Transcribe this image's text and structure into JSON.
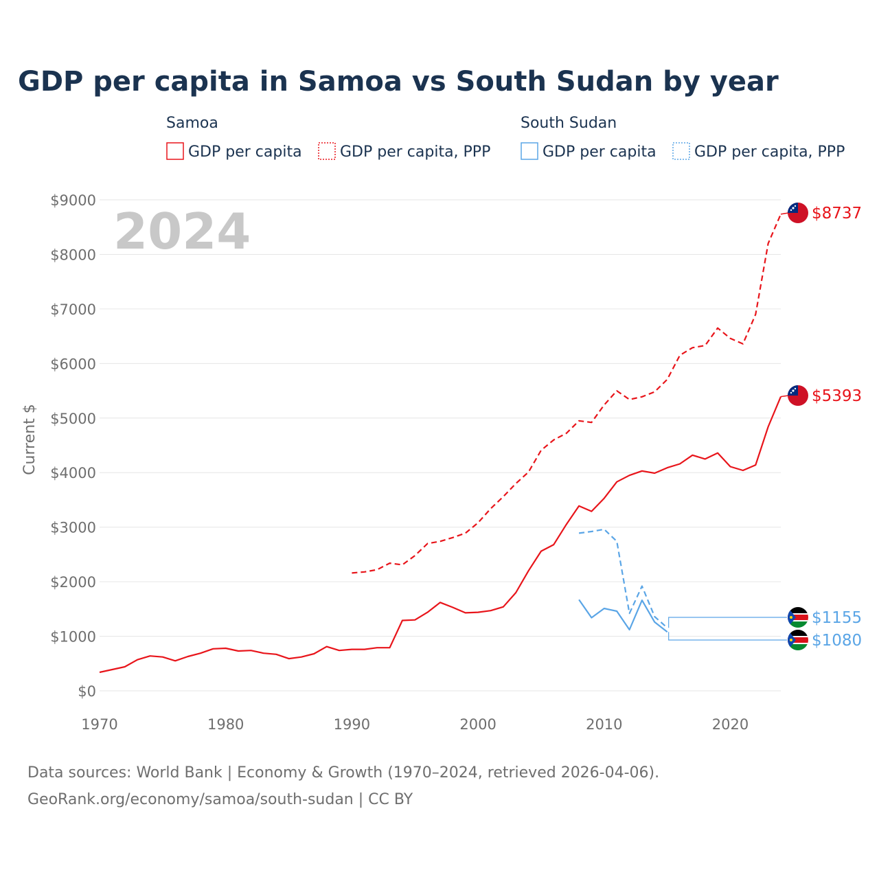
{
  "colors": {
    "samoa": "#e8141a",
    "south_sudan": "#5aa5e6",
    "title": "#1b3350",
    "muted": "#6e6e6e"
  },
  "chart_data": {
    "type": "line",
    "title": "GDP per capita in Samoa vs South Sudan by year",
    "year_label": "2024",
    "ylabel": "Current $",
    "xlim": [
      1970,
      2024
    ],
    "ylim": [
      0,
      9000
    ],
    "x_ticks": [
      1970,
      1980,
      1990,
      2000,
      2010,
      2020
    ],
    "y_ticks": [
      0,
      1000,
      2000,
      3000,
      4000,
      5000,
      6000,
      7000,
      8000,
      9000
    ],
    "y_tick_labels": [
      "$0",
      "$1000",
      "$2000",
      "$3000",
      "$4000",
      "$5000",
      "$6000",
      "$7000",
      "$8000",
      "$9000"
    ],
    "legend": {
      "groups": [
        {
          "name": "Samoa",
          "items": [
            "GDP per capita",
            "GDP per capita, PPP"
          ]
        },
        {
          "name": "South Sudan",
          "items": [
            "GDP per capita",
            "GDP per capita, PPP"
          ]
        }
      ]
    },
    "series": [
      {
        "name": "Samoa GDP per capita",
        "country": "samoa",
        "style": "solid",
        "end_label": "$5393",
        "x": [
          1970,
          1971,
          1972,
          1973,
          1974,
          1975,
          1976,
          1977,
          1978,
          1979,
          1980,
          1981,
          1982,
          1983,
          1984,
          1985,
          1986,
          1987,
          1988,
          1989,
          1990,
          1991,
          1992,
          1993,
          1994,
          1995,
          1996,
          1997,
          1998,
          1999,
          2000,
          2001,
          2002,
          2003,
          2004,
          2005,
          2006,
          2007,
          2008,
          2009,
          2010,
          2011,
          2012,
          2013,
          2014,
          2015,
          2016,
          2017,
          2018,
          2019,
          2020,
          2021,
          2022,
          2023,
          2024
        ],
        "values": [
          340,
          390,
          440,
          570,
          640,
          620,
          550,
          630,
          690,
          770,
          780,
          730,
          740,
          690,
          670,
          590,
          620,
          680,
          810,
          740,
          760,
          760,
          790,
          790,
          1290,
          1300,
          1440,
          1620,
          1530,
          1430,
          1440,
          1470,
          1540,
          1800,
          2200,
          2560,
          2680,
          3050,
          3390,
          3290,
          3530,
          3830,
          3950,
          4030,
          3990,
          4090,
          4160,
          4320,
          4250,
          4360,
          4110,
          4040,
          4140,
          4840,
          5393
        ]
      },
      {
        "name": "Samoa GDP per capita, PPP",
        "country": "samoa",
        "style": "dashed",
        "end_label": "$8737",
        "x": [
          1990,
          1991,
          1992,
          1993,
          1994,
          1995,
          1996,
          1997,
          1998,
          1999,
          2000,
          2001,
          2002,
          2003,
          2004,
          2005,
          2006,
          2007,
          2008,
          2009,
          2010,
          2011,
          2012,
          2013,
          2014,
          2015,
          2016,
          2017,
          2018,
          2019,
          2020,
          2021,
          2022,
          2023,
          2024
        ],
        "values": [
          2160,
          2180,
          2220,
          2340,
          2310,
          2480,
          2700,
          2740,
          2810,
          2890,
          3080,
          3340,
          3560,
          3800,
          4010,
          4410,
          4600,
          4720,
          4950,
          4920,
          5240,
          5500,
          5340,
          5390,
          5480,
          5710,
          6150,
          6290,
          6330,
          6650,
          6460,
          6360,
          6900,
          8200,
          8737
        ]
      },
      {
        "name": "South Sudan GDP per capita",
        "country": "south_sudan",
        "style": "solid",
        "end_label": "$1080",
        "x": [
          2008,
          2009,
          2010,
          2011,
          2012,
          2013,
          2014,
          2015
        ],
        "values": [
          1670,
          1340,
          1510,
          1460,
          1120,
          1660,
          1260,
          1080
        ]
      },
      {
        "name": "South Sudan GDP per capita, PPP",
        "country": "south_sudan",
        "style": "dashed",
        "end_label": "$1155",
        "x": [
          2008,
          2009,
          2010,
          2011,
          2012,
          2013,
          2014,
          2015
        ],
        "values": [
          2890,
          2920,
          2960,
          2740,
          1420,
          1920,
          1360,
          1155
        ]
      }
    ]
  },
  "footer": {
    "line1": "Data sources: World Bank | Economy & Growth (1970–2024, retrieved 2026-04-06).",
    "line2": "GeoRank.org/economy/samoa/south-sudan | CC BY"
  }
}
